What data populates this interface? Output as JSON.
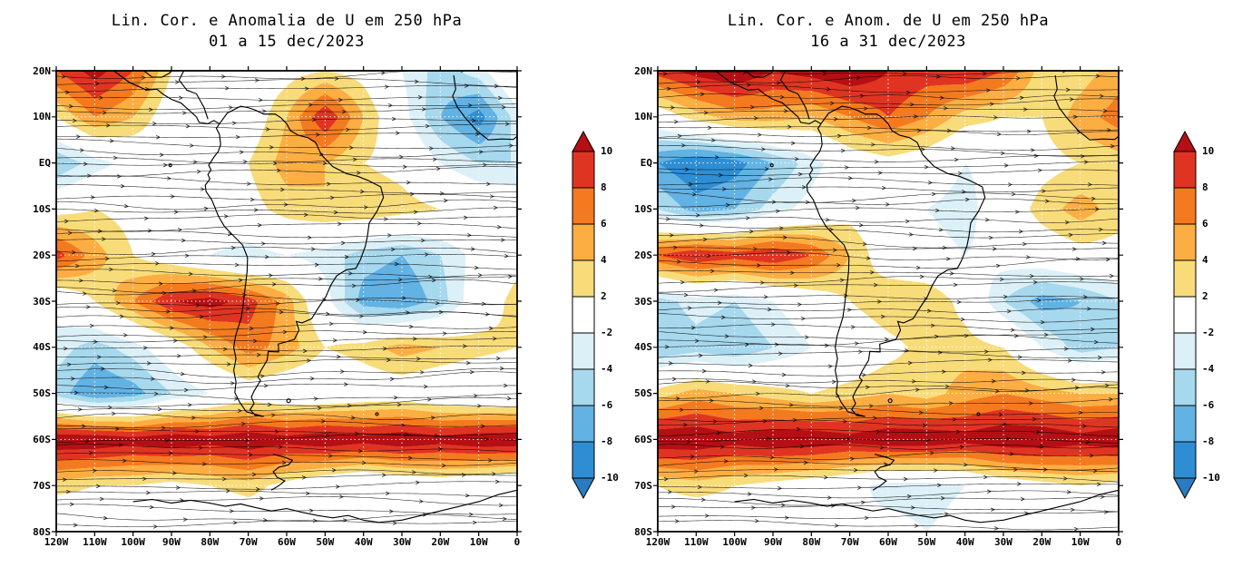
{
  "page": {
    "background": "#ffffff",
    "text_color": "#000000"
  },
  "scale": {
    "levels": [
      -10,
      -8,
      -6,
      -4,
      -2,
      2,
      4,
      6,
      8,
      10
    ],
    "band_colors": [
      "#2a7bc0",
      "#2f8ed3",
      "#62b2e4",
      "#a6d8ee",
      "#dcf0f8",
      "#ffffff",
      "#f8dc7a",
      "#fcae43",
      "#f47a20",
      "#e03423",
      "#b40f14"
    ],
    "colorbar_tick_labels": [
      "10",
      "8",
      "6",
      "4",
      "2",
      "-2",
      "-4",
      "-6",
      "-8",
      "-10"
    ]
  },
  "axes": {
    "lat_tick_labels": [
      "20N",
      "10N",
      "EQ",
      "10S",
      "20S",
      "30S",
      "40S",
      "50S",
      "60S",
      "70S",
      "80S"
    ],
    "lon_tick_labels": [
      "120W",
      "110W",
      "100W",
      "90W",
      "80W",
      "70W",
      "60W",
      "50W",
      "40W",
      "30W",
      "20W",
      "10W",
      "0"
    ]
  },
  "chart_data": [
    {
      "type": "heatmap",
      "title": "Lin. Cor. e Anomalia de U em 250 hPa",
      "subtitle": "01 a 15 dec/2023",
      "overlays": [
        "streamlines",
        "coastlines"
      ],
      "legend_position": "right",
      "lons": [
        -120,
        -110,
        -100,
        -90,
        -80,
        -70,
        -60,
        -50,
        -40,
        -30,
        -20,
        -10,
        0
      ],
      "lats": [
        20,
        10,
        0,
        -10,
        -20,
        -30,
        -40,
        -50,
        -60,
        -70,
        -80
      ],
      "values": [
        [
          8,
          11,
          8,
          2,
          0,
          0,
          1,
          2,
          1,
          -2,
          -5,
          -3,
          2
        ],
        [
          2,
          6,
          4,
          0,
          -1,
          0,
          4,
          10,
          4,
          -1,
          -6,
          -9,
          -3
        ],
        [
          -6,
          -3,
          -1,
          0,
          0,
          2,
          5,
          4,
          2,
          1,
          -2,
          -4,
          -4
        ],
        [
          1,
          2,
          1,
          0,
          0,
          1,
          3,
          4,
          4,
          3,
          2,
          1,
          0
        ],
        [
          9,
          5,
          2,
          0,
          -2,
          -3,
          -2,
          -3,
          -5,
          -6,
          -4,
          -1,
          1
        ],
        [
          -1,
          2,
          6,
          10,
          11,
          9,
          5,
          -1,
          -7,
          -8,
          -5,
          0,
          3
        ],
        [
          -3,
          -5,
          -3,
          0,
          4,
          7,
          5,
          2,
          3,
          5,
          4,
          3,
          2
        ],
        [
          -5,
          -8,
          -7,
          -4,
          -2,
          0,
          -1,
          -1,
          0,
          0,
          -1,
          -2,
          -2
        ],
        [
          12,
          12,
          11,
          12,
          11,
          12,
          11,
          12,
          11,
          12,
          11,
          12,
          12
        ],
        [
          3,
          2,
          2,
          1,
          2,
          3,
          1,
          -1,
          -2,
          -1,
          0,
          -1,
          -2
        ],
        [
          -2,
          -1,
          0,
          -1,
          -2,
          -1,
          0,
          -1,
          -2,
          -1,
          0,
          -1,
          -2
        ]
      ]
    },
    {
      "type": "heatmap",
      "title": "Lin. Cor. e Anom. de U em 250 hPa",
      "subtitle": "16 a 31 dec/2023",
      "overlays": [
        "streamlines",
        "coastlines"
      ],
      "legend_position": "right",
      "lons": [
        -120,
        -110,
        -100,
        -90,
        -80,
        -70,
        -60,
        -50,
        -40,
        -30,
        -20,
        -10,
        0
      ],
      "lats": [
        20,
        10,
        0,
        -10,
        -20,
        -30,
        -40,
        -50,
        -60,
        -70,
        -80
      ],
      "values": [
        [
          9,
          11,
          12,
          10,
          11,
          12,
          10,
          9,
          10,
          8,
          3,
          3,
          5
        ],
        [
          0,
          3,
          5,
          5,
          4,
          6,
          8,
          6,
          3,
          2,
          2,
          5,
          7
        ],
        [
          -8,
          -10,
          -9,
          -6,
          -3,
          0,
          1,
          0,
          -2,
          -1,
          1,
          2,
          3
        ],
        [
          -4,
          -7,
          -6,
          -3,
          -1,
          1,
          0,
          -2,
          -3,
          0,
          3,
          5,
          3
        ],
        [
          8,
          10,
          9,
          10,
          8,
          4,
          0,
          -1,
          -2,
          -1,
          0,
          1,
          1
        ],
        [
          -5,
          -3,
          -4,
          -2,
          0,
          2,
          4,
          4,
          1,
          -4,
          -7,
          -6,
          -4
        ],
        [
          -6,
          -5,
          -6,
          -4,
          -2,
          -1,
          1,
          3,
          3,
          2,
          -2,
          -5,
          -4
        ],
        [
          3,
          5,
          4,
          3,
          2,
          3,
          4,
          3,
          5,
          6,
          5,
          4,
          4
        ],
        [
          12,
          12,
          11,
          12,
          12,
          11,
          12,
          12,
          11,
          12,
          12,
          11,
          12
        ],
        [
          2,
          3,
          2,
          1,
          0,
          -1,
          -3,
          -3,
          -2,
          0,
          1,
          2,
          1
        ],
        [
          0,
          -1,
          0,
          -1,
          -2,
          -2,
          -1,
          -2,
          -1,
          0,
          -1,
          0,
          -1
        ]
      ]
    }
  ]
}
